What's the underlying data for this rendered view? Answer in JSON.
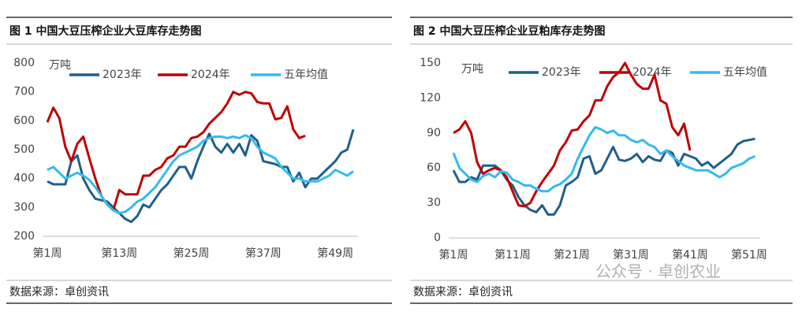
{
  "chart_data": [
    {
      "type": "line",
      "title": "图 1 中国大豆压榨企业大豆库存走势图",
      "y_unit": "万吨",
      "source": "数据来源：卓创资讯",
      "categories": [
        "第1周",
        null,
        null,
        null,
        null,
        null,
        null,
        null,
        null,
        null,
        null,
        null,
        "第13周",
        null,
        null,
        null,
        null,
        null,
        null,
        null,
        null,
        null,
        null,
        null,
        "第25周",
        null,
        null,
        null,
        null,
        null,
        null,
        null,
        null,
        null,
        null,
        null,
        "第37周",
        null,
        null,
        null,
        null,
        null,
        null,
        null,
        null,
        null,
        null,
        null,
        "第49周",
        null,
        null,
        null
      ],
      "ylim": [
        200,
        800
      ],
      "yticks": [
        200,
        300,
        400,
        500,
        600,
        700,
        800
      ],
      "grid": false,
      "legend": "top",
      "series": [
        {
          "name": "2023年",
          "color": "#1f5f8b",
          "values": [
            390,
            380,
            380,
            380,
            460,
            480,
            400,
            360,
            330,
            325,
            320,
            300,
            280,
            260,
            250,
            270,
            310,
            300,
            330,
            360,
            380,
            410,
            440,
            440,
            400,
            460,
            510,
            555,
            510,
            490,
            520,
            490,
            520,
            480,
            550,
            530,
            460,
            455,
            450,
            440,
            440,
            390,
            420,
            370,
            400,
            400,
            420,
            440,
            460,
            490,
            500,
            570
          ]
        },
        {
          "name": "2024年",
          "color": "#c00000",
          "values": [
            595,
            645,
            610,
            510,
            460,
            520,
            545,
            470,
            400,
            340,
            310,
            290,
            360,
            345,
            345,
            345,
            410,
            410,
            430,
            440,
            470,
            480,
            510,
            510,
            540,
            545,
            560,
            590,
            610,
            630,
            660,
            700,
            690,
            700,
            695,
            665,
            660,
            660,
            605,
            610,
            650,
            570,
            540,
            548,
            null,
            null,
            null,
            null,
            null,
            null,
            null,
            null
          ]
        },
        {
          "name": "五年均值",
          "color": "#33bbee",
          "values": [
            430,
            440,
            420,
            400,
            410,
            420,
            410,
            395,
            370,
            340,
            310,
            290,
            280,
            285,
            300,
            320,
            330,
            350,
            370,
            400,
            430,
            460,
            480,
            490,
            500,
            510,
            530,
            540,
            545,
            545,
            540,
            545,
            540,
            550,
            540,
            510,
            490,
            480,
            470,
            440,
            420,
            400,
            400,
            390,
            390,
            390,
            400,
            410,
            430,
            420,
            410,
            425
          ]
        }
      ]
    },
    {
      "type": "line",
      "title": "图 2 中国大豆压榨企业豆粕库存走势图",
      "y_unit": "万吨",
      "source": "数据来源：卓创资讯",
      "categories": [
        "第1周",
        null,
        null,
        null,
        null,
        null,
        null,
        null,
        null,
        null,
        "第11周",
        null,
        null,
        null,
        null,
        null,
        null,
        null,
        null,
        null,
        "第21周",
        null,
        null,
        null,
        null,
        null,
        null,
        null,
        null,
        null,
        "第31周",
        null,
        null,
        null,
        null,
        null,
        null,
        null,
        null,
        null,
        "第41周",
        null,
        null,
        null,
        null,
        null,
        null,
        null,
        null,
        null,
        "第51周",
        null
      ],
      "ylim": [
        0,
        150
      ],
      "yticks": [
        0,
        30,
        60,
        90,
        120,
        150
      ],
      "grid": false,
      "legend": "top",
      "series": [
        {
          "name": "2023年",
          "color": "#1f5f8b",
          "values": [
            58,
            48,
            48,
            52,
            50,
            62,
            62,
            62,
            58,
            50,
            45,
            35,
            28,
            24,
            22,
            28,
            20,
            20,
            28,
            45,
            48,
            52,
            68,
            70,
            55,
            58,
            68,
            78,
            67,
            66,
            68,
            72,
            65,
            70,
            67,
            66,
            75,
            73,
            62,
            72,
            70,
            68,
            62,
            65,
            60,
            64,
            68,
            72,
            80,
            83,
            84,
            85
          ]
        },
        {
          "name": "2024年",
          "color": "#c00000",
          "values": [
            90,
            93,
            100,
            90,
            65,
            55,
            58,
            60,
            58,
            52,
            40,
            28,
            27,
            30,
            40,
            48,
            55,
            62,
            75,
            82,
            92,
            93,
            100,
            105,
            118,
            118,
            130,
            138,
            142,
            150,
            140,
            132,
            128,
            128,
            140,
            118,
            115,
            95,
            88,
            98,
            75,
            null,
            null,
            null,
            null,
            null,
            null,
            null,
            null,
            null,
            null,
            null
          ]
        },
        {
          "name": "五年均值",
          "color": "#33bbee",
          "values": [
            73,
            60,
            55,
            50,
            48,
            53,
            55,
            52,
            57,
            56,
            50,
            48,
            45,
            45,
            42,
            40,
            40,
            44,
            46,
            50,
            55,
            68,
            78,
            88,
            95,
            93,
            90,
            92,
            88,
            88,
            84,
            82,
            84,
            80,
            78,
            72,
            75,
            70,
            66,
            62,
            60,
            58,
            58,
            58,
            55,
            52,
            55,
            60,
            62,
            64,
            68,
            70
          ]
        }
      ]
    }
  ],
  "watermark": "公众号 · 卓创农业"
}
